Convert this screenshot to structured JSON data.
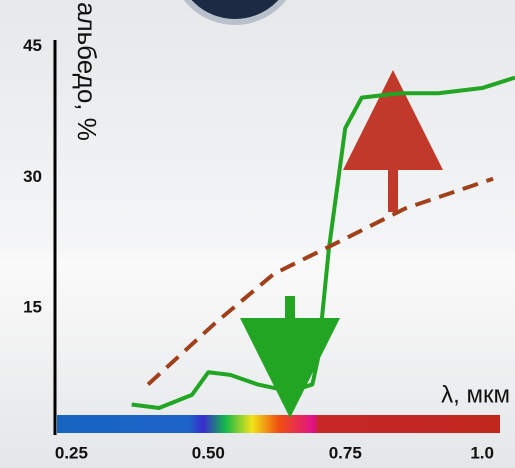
{
  "chart_data": {
    "type": "line",
    "y_label": "альбедо, %",
    "x_label": "λ, мкм",
    "xlim": [
      0.22,
      1.06
    ],
    "ylim": [
      0,
      46
    ],
    "xticks": [
      0.25,
      {
        "value": 0.5,
        "label": "0.50"
      },
      0.75,
      {
        "value": 1,
        "label": "1.0"
      }
    ],
    "yticks": [
      15,
      30,
      45
    ],
    "series": [
      {
        "color": "#22a522",
        "line_style": "solid",
        "x": [
          0.36,
          0.41,
          0.47,
          0.5,
          0.54,
          0.59,
          0.65,
          0.69,
          0.7,
          0.72,
          0.75,
          0.78,
          0.85,
          0.92,
          1.0,
          1.06
        ],
        "values": [
          3.5,
          3.1,
          4.6,
          7.2,
          6.9,
          5.8,
          5.0,
          5.8,
          8.7,
          21.3,
          35.2,
          38.7,
          39.2,
          39.2,
          39.8,
          41
        ]
      },
      {
        "color": "#a0401a",
        "line_style": "dashed",
        "x": [
          0.39,
          0.51,
          0.62,
          0.73,
          0.86,
          1.02
        ],
        "values": [
          5.8,
          12.7,
          18.5,
          21.9,
          26.0,
          29.4
        ]
      }
    ]
  }
}
